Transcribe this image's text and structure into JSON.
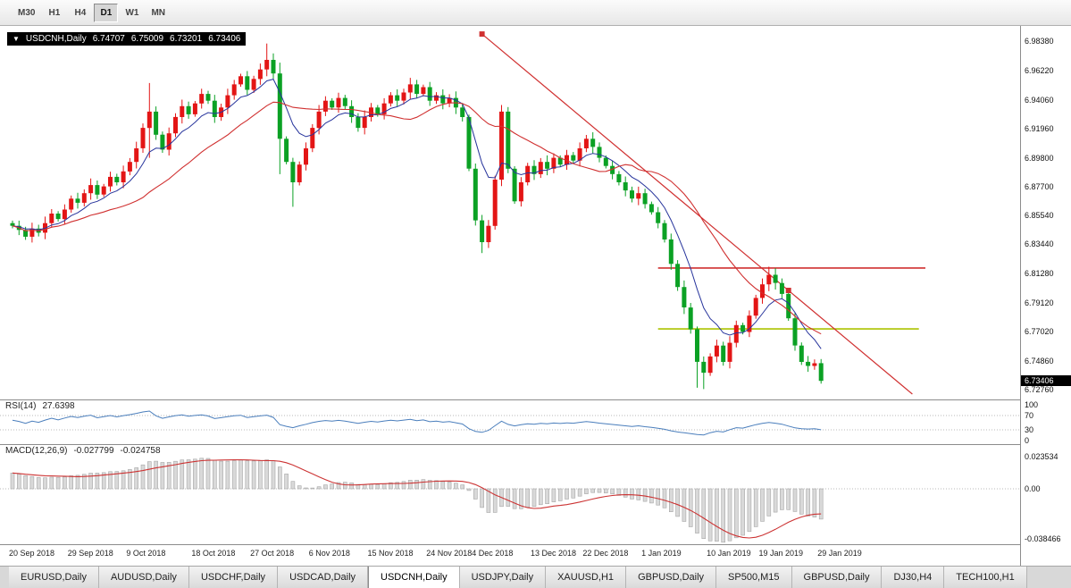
{
  "toolbar": {
    "timeframes": [
      {
        "label": "M30"
      },
      {
        "label": "H1"
      },
      {
        "label": "H4"
      },
      {
        "label": "D1",
        "active": true
      },
      {
        "label": "W1"
      },
      {
        "label": "MN"
      }
    ]
  },
  "chart": {
    "symbol_label": "USDCNH,Daily",
    "expander_icon": "▼",
    "quote": {
      "open": "6.74707",
      "high": "6.75009",
      "low": "6.73201",
      "close": "6.73406"
    },
    "price_axis": [
      "6.98380",
      "6.96220",
      "6.94060",
      "6.91960",
      "6.89800",
      "6.87700",
      "6.85540",
      "6.83440",
      "6.81280",
      "6.79120",
      "6.77020",
      "6.74860",
      "6.72760"
    ],
    "current_price": "6.73406"
  },
  "rsi_panel": {
    "label": "RSI(14)",
    "value": "27.6398",
    "axis": [
      "100",
      "70",
      "30",
      "0"
    ]
  },
  "macd_panel": {
    "label": "MACD(12,26,9)",
    "value_main": "-0.027799",
    "value_signal": "-0.024758",
    "axis": [
      "0.023534",
      "0.00",
      "-0.038466"
    ]
  },
  "date_axis": [
    {
      "label": "20 Sep 2018",
      "index": 0
    },
    {
      "label": "29 Sep 2018",
      "index": 9
    },
    {
      "label": "9 Oct 2018",
      "index": 18
    },
    {
      "label": "18 Oct 2018",
      "index": 28
    },
    {
      "label": "27 Oct 2018",
      "index": 37
    },
    {
      "label": "6 Nov 2018",
      "index": 46
    },
    {
      "label": "15 Nov 2018",
      "index": 55
    },
    {
      "label": "24 Nov 2018",
      "index": 64
    },
    {
      "label": "4 Dec 2018",
      "index": 71
    },
    {
      "label": "13 Dec 2018",
      "index": 80
    },
    {
      "label": "22 Dec 2018",
      "index": 88
    },
    {
      "label": "1 Jan 2019",
      "index": 97
    },
    {
      "label": "10 Jan 2019",
      "index": 107
    },
    {
      "label": "19 Jan 2019",
      "index": 115
    },
    {
      "label": "29 Jan 2019",
      "index": 124
    }
  ],
  "tabs": [
    {
      "label": "EURUSD,Daily"
    },
    {
      "label": "AUDUSD,Daily"
    },
    {
      "label": "USDCHF,Daily"
    },
    {
      "label": "USDCAD,Daily"
    },
    {
      "label": "USDCNH,Daily",
      "active": true
    },
    {
      "label": "USDJPY,Daily"
    },
    {
      "label": "XAUUSD,H1"
    },
    {
      "label": "GBPUSD,Daily"
    },
    {
      "label": "SP500,M15"
    },
    {
      "label": "GBPUSD,Daily"
    },
    {
      "label": "DJ30,H4"
    },
    {
      "label": "TECH100,H1"
    }
  ],
  "chart_data": {
    "type": "candlestick",
    "symbol": "USDCNH",
    "timeframe": "Daily",
    "color_convention": "red=bullish, green=bearish",
    "bull_color": "#e31515",
    "bear_color": "#0ba124",
    "price_axis_range": [
      6.7276,
      6.9838
    ],
    "closes": [
      6.848,
      6.845,
      6.84,
      6.846,
      6.843,
      6.85,
      6.857,
      6.853,
      6.86,
      6.868,
      6.865,
      6.872,
      6.878,
      6.871,
      6.877,
      6.884,
      6.88,
      6.888,
      6.895,
      6.905,
      6.92,
      6.932,
      6.915,
      6.904,
      6.916,
      6.928,
      6.936,
      6.93,
      6.938,
      6.945,
      6.94,
      6.928,
      6.935,
      6.944,
      6.952,
      6.958,
      6.948,
      6.956,
      6.963,
      6.97,
      6.96,
      6.912,
      6.895,
      6.88,
      6.893,
      6.905,
      6.92,
      6.932,
      6.94,
      6.935,
      6.942,
      6.936,
      6.928,
      6.92,
      6.928,
      6.935,
      6.93,
      6.938,
      6.944,
      6.94,
      6.946,
      6.952,
      6.945,
      6.95,
      6.94,
      6.944,
      6.938,
      6.942,
      6.935,
      6.928,
      6.89,
      6.852,
      6.836,
      6.848,
      6.882,
      6.932,
      6.89,
      6.866,
      6.88,
      6.892,
      6.886,
      6.895,
      6.89,
      6.898,
      6.893,
      6.9,
      6.896,
      6.905,
      6.912,
      6.906,
      6.898,
      6.892,
      6.886,
      6.88,
      6.874,
      6.868,
      6.872,
      6.864,
      6.858,
      6.85,
      6.838,
      6.82,
      6.803,
      6.788,
      6.772,
      6.748,
      6.74,
      6.752,
      6.76,
      6.748,
      6.762,
      6.775,
      6.77,
      6.782,
      6.795,
      6.805,
      6.812,
      6.806,
      6.798,
      6.78,
      6.76,
      6.748,
      6.745,
      6.747,
      6.73406
    ],
    "candle_overrides": {
      "21": [
        6.92,
        6.953,
        6.898,
        6.932
      ],
      "39": [
        6.963,
        6.982,
        6.958,
        6.97
      ],
      "41": [
        6.96,
        6.968,
        6.886,
        6.912
      ],
      "43": [
        6.895,
        6.898,
        6.862,
        6.88
      ],
      "72": [
        6.852,
        6.856,
        6.828,
        6.836
      ],
      "105": [
        6.772,
        6.774,
        6.729,
        6.748
      ],
      "106": [
        6.748,
        6.752,
        6.728,
        6.74
      ],
      "116": [
        6.805,
        6.818,
        6.8,
        6.812
      ],
      "124": [
        6.74707,
        6.75009,
        6.73201,
        6.73406
      ]
    },
    "moving_averages": [
      {
        "name": "ma-fast",
        "period": 8,
        "method": "ema",
        "color": "#27349c"
      },
      {
        "name": "ma-slow",
        "period": 21,
        "method": "sma",
        "color": "#d03030"
      }
    ],
    "trendline": {
      "color": "#d03030",
      "anchors": [
        [
          72,
          6.989
        ],
        [
          119,
          6.8005
        ]
      ],
      "extend_to_index": 138
    },
    "horizontal_lines": [
      {
        "name": "resistance-line",
        "price": 6.817,
        "color": "#d03030",
        "from_index": 99,
        "to_index": 140
      },
      {
        "name": "support-line",
        "price": 6.7722,
        "color": "#abc300",
        "from_index": 99,
        "to_index": 139
      }
    ],
    "rsi": {
      "period": 14,
      "levels": [
        70,
        30
      ],
      "color": "#4a7ebc"
    },
    "macd": {
      "fast": 12,
      "slow": 26,
      "signal": 9,
      "bar_fill": "#d9d9d9",
      "bar_stroke": "#a6a6a6",
      "signal_color": "#cc3333"
    }
  }
}
